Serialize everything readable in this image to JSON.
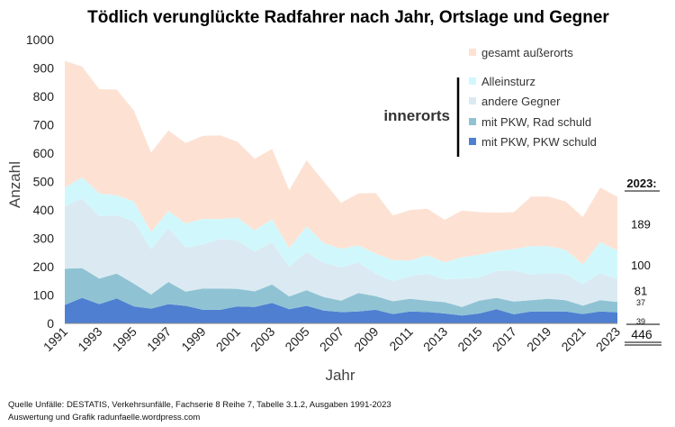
{
  "chart_data": {
    "type": "area",
    "stacked": true,
    "title": "Tödlich verunglückte Radfahrer nach Jahr, Ortslage und Gegner",
    "xlabel": "Jahr",
    "ylabel": "Anzahl",
    "ylim": [
      0,
      1000
    ],
    "yticks": [
      0,
      100,
      200,
      300,
      400,
      500,
      600,
      700,
      800,
      900,
      1000
    ],
    "xticks": [
      1991,
      1993,
      1995,
      1997,
      1999,
      2001,
      2003,
      2005,
      2007,
      2009,
      2011,
      2013,
      2015,
      2017,
      2019,
      2021,
      2023
    ],
    "x": [
      1991,
      1992,
      1993,
      1994,
      1995,
      1996,
      1997,
      1998,
      1999,
      2000,
      2001,
      2002,
      2003,
      2004,
      2005,
      2006,
      2007,
      2008,
      2009,
      2010,
      2011,
      2012,
      2013,
      2014,
      2015,
      2016,
      2017,
      2018,
      2019,
      2020,
      2021,
      2022,
      2023
    ],
    "series": [
      {
        "name": "mit PKW, PKW schuld",
        "color": "#4f7fd1",
        "values": [
          65,
          90,
          68,
          88,
          60,
          52,
          68,
          62,
          48,
          48,
          60,
          58,
          72,
          50,
          62,
          45,
          40,
          42,
          48,
          33,
          42,
          40,
          35,
          28,
          35,
          50,
          32,
          42,
          42,
          42,
          33,
          42,
          39
        ]
      },
      {
        "name": "mit PKW, Rad schuld",
        "color": "#8fc3d4",
        "values": [
          128,
          105,
          90,
          88,
          80,
          50,
          78,
          50,
          75,
          75,
          62,
          55,
          65,
          45,
          55,
          48,
          40,
          65,
          48,
          45,
          45,
          40,
          40,
          30,
          45,
          40,
          45,
          40,
          45,
          40,
          30,
          40,
          37
        ]
      },
      {
        "name": "andere Gegner",
        "color": "#dbeaf2",
        "values": [
          220,
          245,
          220,
          205,
          220,
          160,
          190,
          155,
          155,
          175,
          170,
          140,
          150,
          105,
          135,
          120,
          118,
          108,
          80,
          70,
          80,
          95,
          80,
          100,
          82,
          95,
          110,
          90,
          90,
          92,
          75,
          95,
          81
        ]
      },
      {
        "name": "Alleinsturz",
        "color": "#d0f8fc",
        "values": [
          65,
          75,
          80,
          70,
          70,
          60,
          60,
          85,
          90,
          70,
          80,
          75,
          80,
          65,
          90,
          70,
          65,
          60,
          70,
          75,
          55,
          65,
          60,
          75,
          80,
          70,
          75,
          100,
          95,
          85,
          70,
          110,
          100
        ]
      },
      {
        "name": "gesamt außerorts",
        "color": "#fde2d4",
        "values": [
          447,
          390,
          367,
          373,
          320,
          280,
          284,
          284,
          293,
          295,
          268,
          252,
          248,
          205,
          233,
          217,
          162,
          183,
          214,
          157,
          178,
          164,
          150,
          165,
          150,
          135,
          130,
          175,
          175,
          171,
          167,
          192,
          189
        ]
      }
    ],
    "legend": [
      "gesamt außerorts",
      "Alleinsturz",
      "andere Gegner",
      "mit PKW, Rad schuld",
      "mit PKW, PKW schuld"
    ],
    "legend_group_label": "innerorts",
    "legend_position": "upper-right",
    "annotation_header": "2023:",
    "annotations_2023": {
      "gesamt außerorts": "189",
      "Alleinsturz": "100",
      "andere Gegner": "81",
      "mit PKW, Rad schuld": "37",
      "mit PKW, PKW schuld": "39"
    },
    "annotation_total": "446"
  },
  "source": {
    "line1": "Quelle Unfälle: DESTATIS, Verkehrsunfälle, Fachserie 8 Reihe 7, Tabelle 3.1.2, Ausgaben 1991-2023",
    "line2": "Auswertung und Grafik radunfaelle.wordpress.com"
  }
}
